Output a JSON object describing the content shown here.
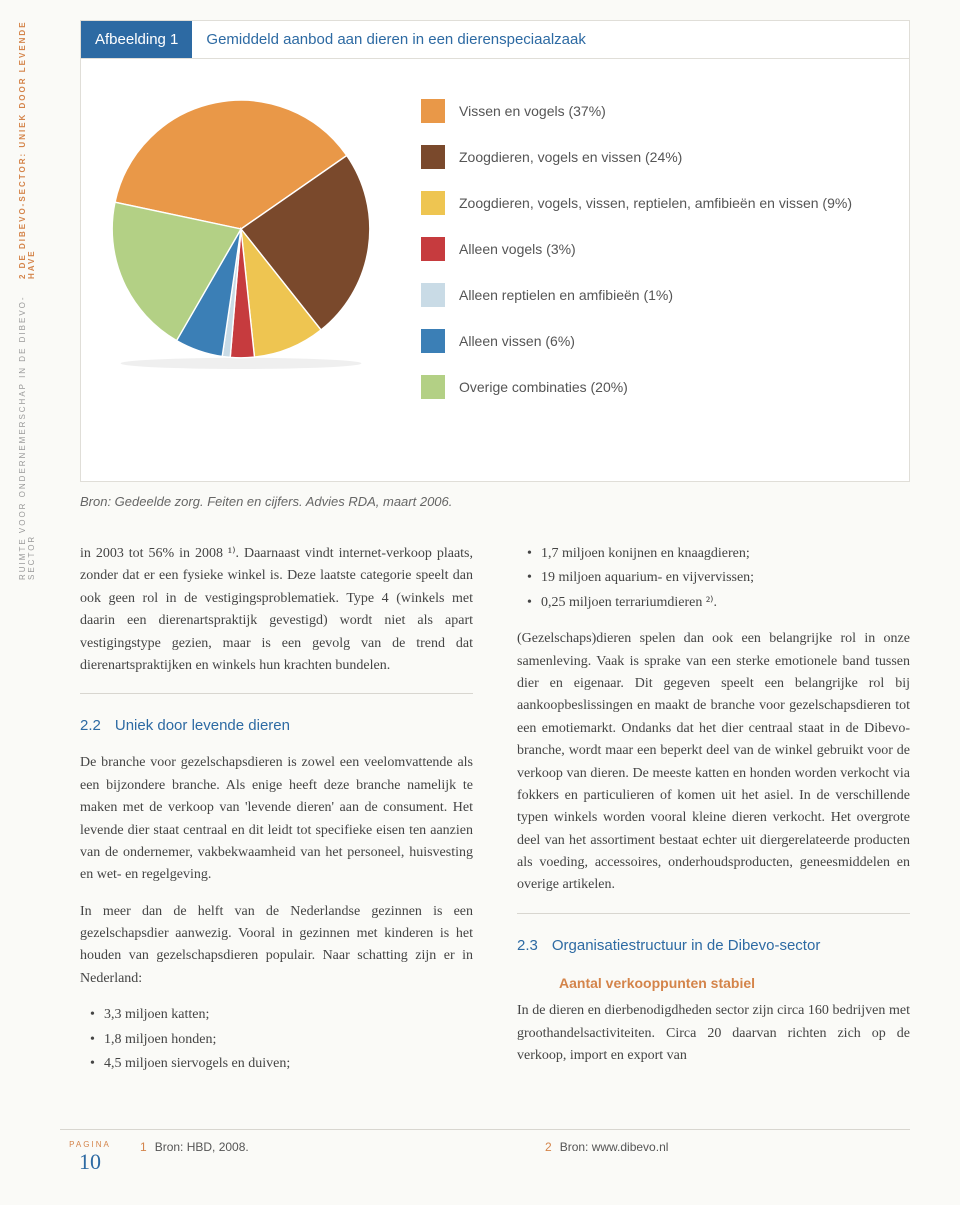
{
  "sidebar_text": {
    "line1": "RUIMTE VOOR ONDERNEMERSCHAP IN DE DIBEVO-SECTOR",
    "line2": "2 DE DIBEVO-SECTOR: UNIEK DOOR LEVENDE HAVE"
  },
  "figure": {
    "label": "Afbeelding 1",
    "title": "Gemiddeld aanbod aan dieren in een dierenspeciaalzaak"
  },
  "chart": {
    "type": "pie",
    "background_color": "#ffffff",
    "segments": [
      {
        "label": "Vissen en vogels (37%)",
        "value": 37,
        "color": "#e99848"
      },
      {
        "label": "Zoogdieren, vogels en vissen (24%)",
        "value": 24,
        "color": "#7a492c"
      },
      {
        "label": "Zoogdieren, vogels, vissen, reptielen, amfibieën en vissen (9%)",
        "value": 9,
        "color": "#eec551"
      },
      {
        "label": "Alleen vogels (3%)",
        "value": 3,
        "color": "#c63b3e"
      },
      {
        "label": "Alleen reptielen en amfibieën (1%)",
        "value": 1,
        "color": "#c9dbe6"
      },
      {
        "label": "Alleen vissen (6%)",
        "value": 6,
        "color": "#3b7fb6"
      },
      {
        "label": "Overige combinaties (20%)",
        "value": 20,
        "color": "#b3d085"
      }
    ],
    "start_angle_deg": -168
  },
  "source": "Bron: Gedeelde zorg. Feiten en cijfers. Advies RDA, maart 2006.",
  "left_col": {
    "p1": "in 2003 tot 56% in 2008 ¹⁾. Daarnaast vindt internet-verkoop plaats, zonder dat er een fysieke winkel is. Deze laatste categorie speelt dan ook geen rol in de vestigingsproblematiek. Type 4 (winkels met daarin een dierenartspraktijk gevestigd) wordt niet als apart vestigingstype gezien, maar is een gevolg van de trend dat dierenartspraktijken en winkels hun krachten bundelen.",
    "h22_num": "2.2",
    "h22": "Uniek door levende dieren",
    "p2": "De branche voor gezelschapsdieren is zowel een veelomvattende als een bijzondere branche. Als enige heeft deze branche namelijk te maken met de verkoop van 'levende dieren' aan de consument. Het levende dier staat centraal en dit leidt tot specifieke eisen ten aanzien van de ondernemer, vakbekwaamheid van het personeel, huisvesting en wet- en regelgeving.",
    "p3": "In meer dan de helft van de Nederlandse gezinnen is een gezelschapsdier aanwezig. Vooral in gezinnen met kinderen is het houden van gezelschapsdieren populair. Naar schatting zijn er in Nederland:",
    "list1": [
      "3,3 miljoen katten;",
      "1,8 miljoen honden;",
      "4,5 miljoen siervogels en duiven;"
    ]
  },
  "right_col": {
    "list1": [
      "1,7 miljoen konijnen en knaagdieren;",
      "19 miljoen aquarium- en vijvervissen;",
      "0,25 miljoen terrariumdieren ²⁾."
    ],
    "p1": "(Gezelschaps)dieren spelen dan ook een belangrijke rol in onze samenleving. Vaak is sprake van een sterke emotionele band tussen dier en eigenaar. Dit gegeven speelt een belangrijke rol bij aankoopbeslissingen en maakt de branche voor gezelschapsdieren tot een emotiemarkt. Ondanks dat het dier centraal staat in de Dibevo-branche, wordt maar een beperkt deel van de winkel gebruikt voor de verkoop van dieren. De meeste katten en honden worden verkocht via fokkers en particulieren of komen uit het asiel. In de verschillende typen winkels worden vooral kleine dieren verkocht. Het overgrote deel van het assortiment bestaat echter uit diergerelateerde producten als voeding, accessoires, onderhoudsproducten, geneesmiddelen en overige artikelen.",
    "h23_num": "2.3",
    "h23": "Organisatiestructuur in de Dibevo-sector",
    "sub": "Aantal verkooppunten stabiel",
    "p2": "In de dieren en dierbenodigdheden sector zijn circa 160 bedrijven met groothandelsactiviteiten. Circa 20 daarvan richten zich op de verkoop, import en export van"
  },
  "footer": {
    "pagina": "PAGINA",
    "num": "10",
    "fn1_num": "1",
    "fn1": "Bron: HBD, 2008.",
    "fn2_num": "2",
    "fn2": "Bron: www.dibevo.nl"
  }
}
